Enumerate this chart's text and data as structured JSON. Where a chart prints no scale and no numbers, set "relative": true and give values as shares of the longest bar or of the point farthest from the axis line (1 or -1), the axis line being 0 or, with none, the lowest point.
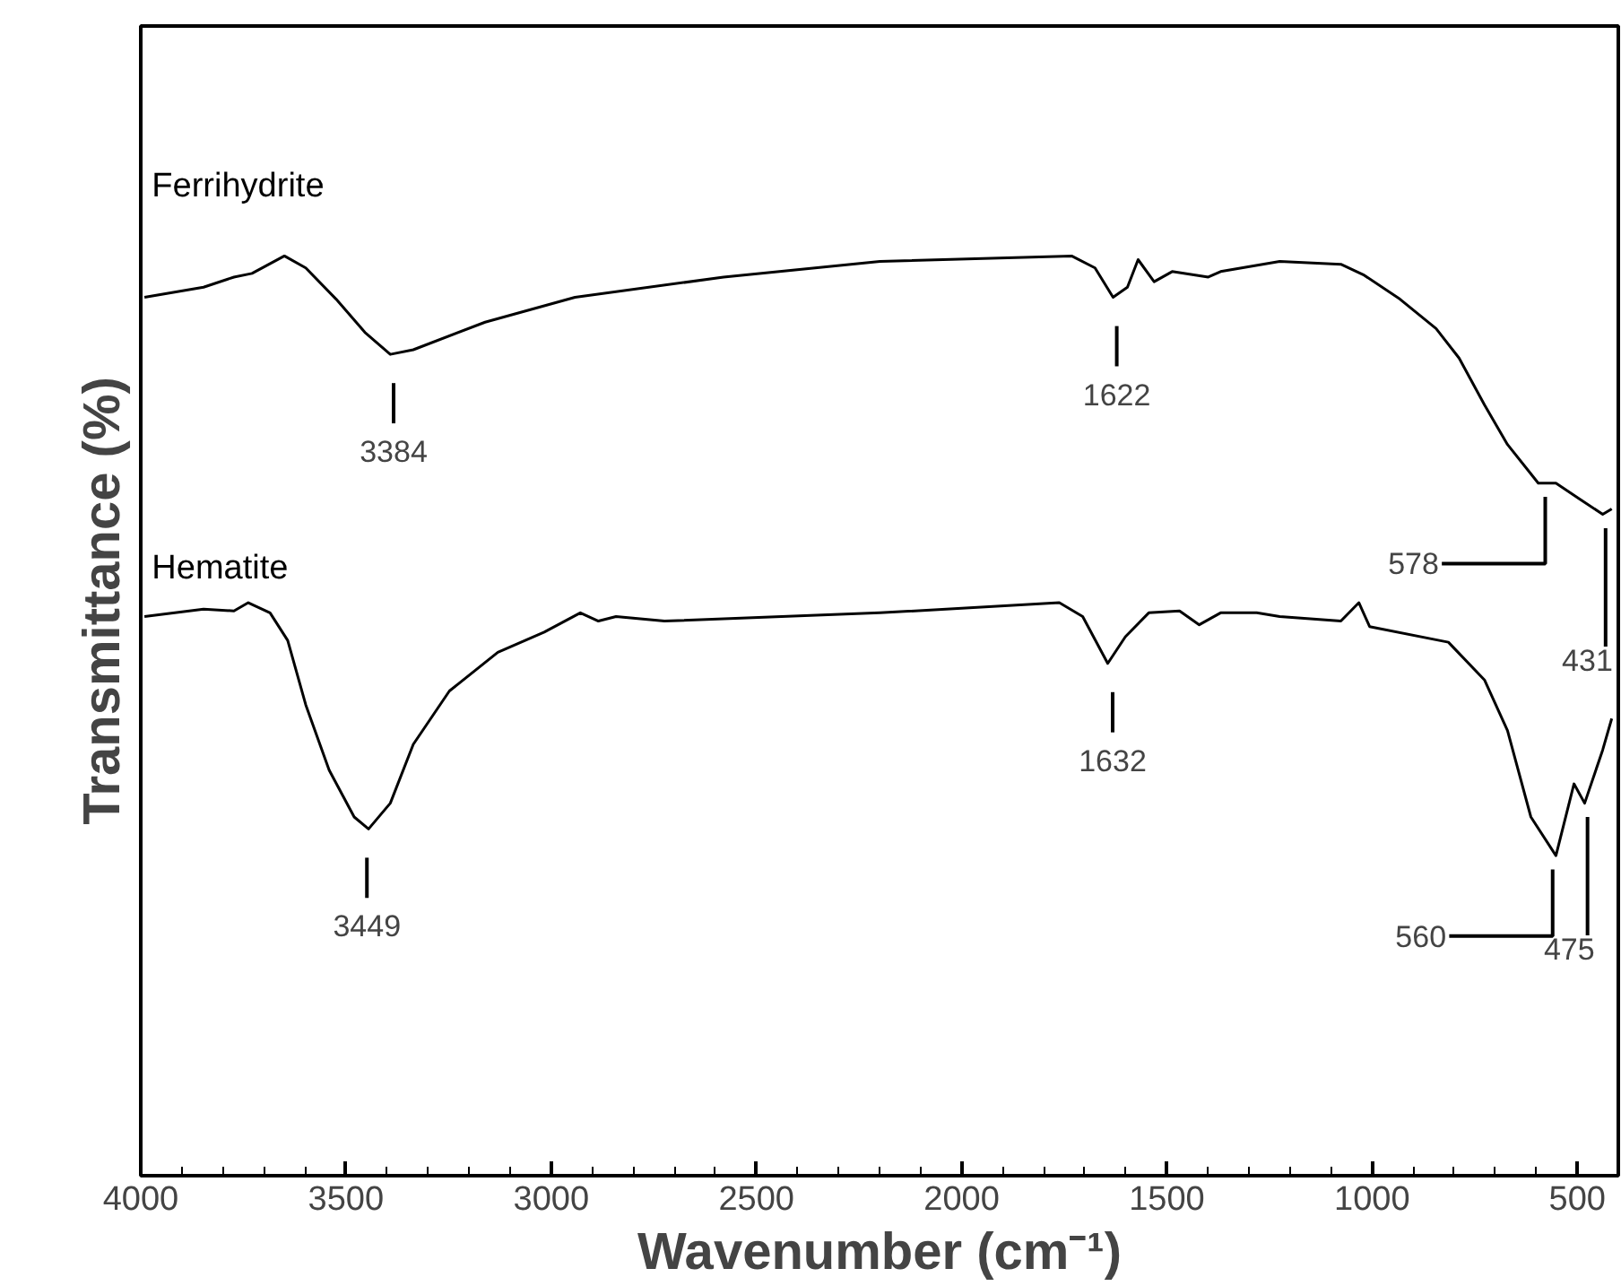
{
  "chart_data": {
    "type": "line",
    "relative": true,
    "xlabel": "Wavenumber (cm⁻¹)",
    "ylabel": "Transmittance (%)",
    "xlim": [
      4000,
      400
    ],
    "xticks": [
      4000,
      3500,
      3000,
      2500,
      2000,
      1500,
      1000,
      500
    ],
    "tick_labels": "x",
    "grid": false,
    "legend": false,
    "marker": "none",
    "line_style": "solid",
    "series": [
      {
        "name": "Ferrihydrite",
        "color": "#000000",
        "x": [
          3991,
          3847,
          3773,
          3729,
          3650,
          3598,
          3524,
          3454,
          3392,
          3336,
          3161,
          2942,
          2580,
          2199,
          1732,
          1675,
          1631,
          1596,
          1570,
          1531,
          1487,
          1399,
          1369,
          1225,
          1076,
          1019,
          932,
          844,
          788,
          726,
          670,
          595,
          552,
          495,
          438,
          416
        ],
        "values": [
          0.955,
          0.966,
          0.977,
          0.981,
          1.0,
          0.987,
          0.953,
          0.917,
          0.893,
          0.898,
          0.928,
          0.955,
          0.977,
          0.994,
          1.0,
          0.987,
          0.955,
          0.966,
          0.996,
          0.972,
          0.983,
          0.977,
          0.983,
          0.994,
          0.991,
          0.979,
          0.953,
          0.921,
          0.889,
          0.838,
          0.795,
          0.753,
          0.753,
          0.736,
          0.719,
          0.725
        ]
      },
      {
        "name": "Hematite",
        "color": "#000000",
        "x": [
          3991,
          3847,
          3773,
          3738,
          3685,
          3642,
          3598,
          3541,
          3480,
          3445,
          3392,
          3336,
          3248,
          3130,
          3017,
          2929,
          2885,
          2842,
          2724,
          2199,
          1762,
          1705,
          1644,
          1601,
          1544,
          1469,
          1421,
          1369,
          1281,
          1225,
          1076,
          1032,
          1006,
          814,
          726,
          670,
          613,
          552,
          508,
          482,
          438,
          416
        ],
        "values": [
          0.608,
          0.616,
          0.614,
          0.623,
          0.612,
          0.582,
          0.512,
          0.441,
          0.39,
          0.377,
          0.405,
          0.469,
          0.527,
          0.569,
          0.591,
          0.612,
          0.603,
          0.608,
          0.603,
          0.612,
          0.623,
          0.608,
          0.557,
          0.586,
          0.612,
          0.614,
          0.599,
          0.612,
          0.612,
          0.608,
          0.603,
          0.623,
          0.597,
          0.58,
          0.539,
          0.484,
          0.39,
          0.348,
          0.426,
          0.405,
          0.463,
          0.497
        ]
      }
    ],
    "annotations": [
      {
        "text": "3384",
        "x": 3384,
        "y": 0.893
      },
      {
        "text": "1622",
        "x": 1622,
        "y": 0.955
      },
      {
        "text": "578",
        "x": 578,
        "y": 0.753
      },
      {
        "text": "431",
        "x": 431,
        "y": 0.719
      },
      {
        "text": "3449",
        "x": 3449,
        "y": 0.377
      },
      {
        "text": "1632",
        "x": 1632,
        "y": 0.557
      },
      {
        "text": "560",
        "x": 560,
        "y": 0.348
      },
      {
        "text": "475",
        "x": 475,
        "y": 0.405
      }
    ]
  }
}
